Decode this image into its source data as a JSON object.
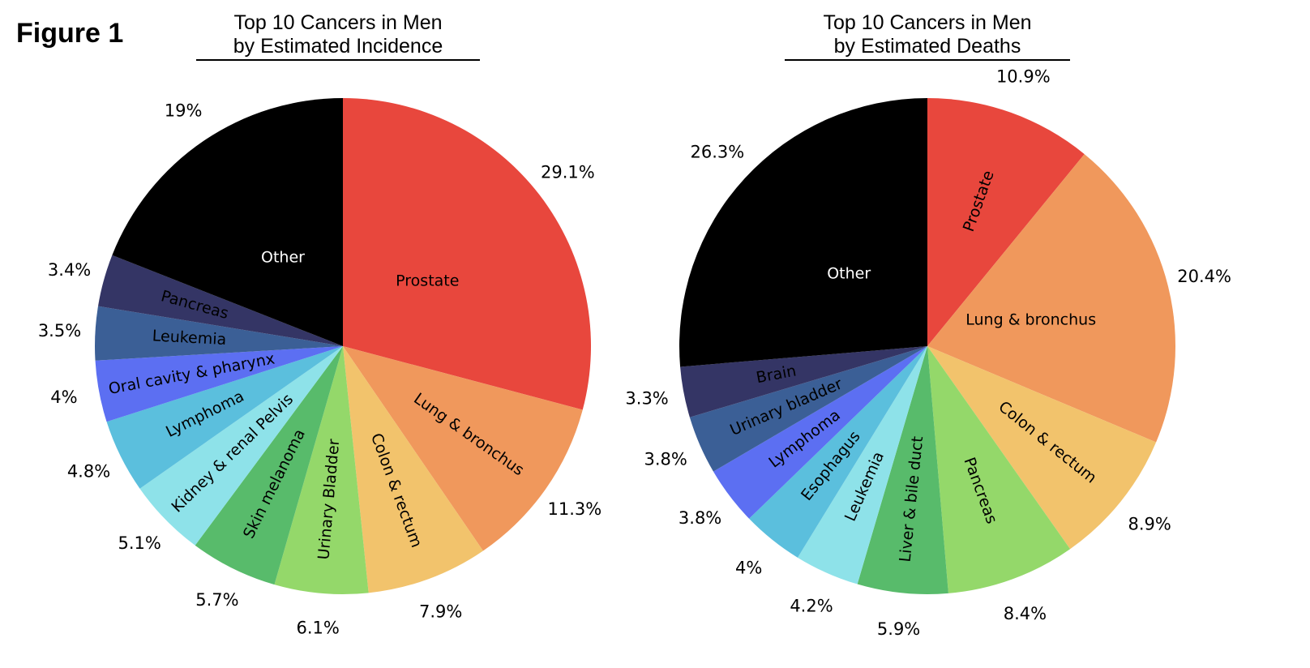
{
  "figure_label": "Figure 1",
  "chart_data": [
    {
      "type": "pie",
      "title_line1": "Top 10 Cancers in Men",
      "title_line2": "by Estimated Incidence",
      "start": "12 o'clock",
      "direction": "clockwise",
      "slices": [
        {
          "label": "Prostate",
          "value": 29.1,
          "pct_label": "29.1%",
          "color": "#e8473d",
          "text_color": "#000000"
        },
        {
          "label": "Lung & bronchus",
          "value": 11.3,
          "pct_label": "11.3%",
          "color": "#f0985c",
          "text_color": "#000000"
        },
        {
          "label": "Colon & rectum",
          "value": 7.9,
          "pct_label": "7.9%",
          "color": "#f2c36c",
          "text_color": "#000000"
        },
        {
          "label": "Urinary Bladder",
          "value": 6.1,
          "pct_label": "6.1%",
          "color": "#94d86a",
          "text_color": "#000000"
        },
        {
          "label": "Skin melanoma",
          "value": 5.7,
          "pct_label": "5.7%",
          "color": "#58bb6b",
          "text_color": "#000000"
        },
        {
          "label": "Kidney & renal Pelvis",
          "value": 5.1,
          "pct_label": "5.1%",
          "color": "#8ee2e9",
          "text_color": "#000000"
        },
        {
          "label": "Lymphoma",
          "value": 4.8,
          "pct_label": "4.8%",
          "color": "#5bbfdd",
          "text_color": "#000000"
        },
        {
          "label": "Oral cavity & pharynx",
          "value": 4.0,
          "pct_label": "4%",
          "color": "#5c6ff2",
          "text_color": "#000000"
        },
        {
          "label": "Leukemia",
          "value": 3.5,
          "pct_label": "3.5%",
          "color": "#3b5f96",
          "text_color": "#000000"
        },
        {
          "label": "Pancreas",
          "value": 3.4,
          "pct_label": "3.4%",
          "color": "#343565",
          "text_color": "#000000"
        },
        {
          "label": "Other",
          "value": 19.0,
          "pct_label": "19%",
          "color": "#000000",
          "text_color": "#ffffff"
        }
      ]
    },
    {
      "type": "pie",
      "title_line1": "Top 10 Cancers in Men",
      "title_line2": "by Estimated Deaths",
      "start": "12 o'clock",
      "direction": "clockwise",
      "slices": [
        {
          "label": "Prostate",
          "value": 10.9,
          "pct_label": "10.9%",
          "color": "#e8473d",
          "text_color": "#000000"
        },
        {
          "label": "Lung & bronchus",
          "value": 20.4,
          "pct_label": "20.4%",
          "color": "#f0985c",
          "text_color": "#000000"
        },
        {
          "label": "Colon & rectum",
          "value": 8.9,
          "pct_label": "8.9%",
          "color": "#f2c36c",
          "text_color": "#000000"
        },
        {
          "label": "Pancreas",
          "value": 8.4,
          "pct_label": "8.4%",
          "color": "#94d86a",
          "text_color": "#000000"
        },
        {
          "label": "Liver & bile duct",
          "value": 5.9,
          "pct_label": "5.9%",
          "color": "#58bb6b",
          "text_color": "#000000"
        },
        {
          "label": "Leukemia",
          "value": 4.2,
          "pct_label": "4.2%",
          "color": "#8ee2e9",
          "text_color": "#000000"
        },
        {
          "label": "Esophagus",
          "value": 4.0,
          "pct_label": "4%",
          "color": "#5bbfdd",
          "text_color": "#000000"
        },
        {
          "label": "Lymphoma",
          "value": 3.8,
          "pct_label": "3.8%",
          "color": "#5c6ff2",
          "text_color": "#000000"
        },
        {
          "label": "Urinary bladder",
          "value": 3.8,
          "pct_label": "3.8%",
          "color": "#3b5f96",
          "text_color": "#000000"
        },
        {
          "label": "Brain",
          "value": 3.3,
          "pct_label": "3.3%",
          "color": "#343565",
          "text_color": "#000000"
        },
        {
          "label": "Other",
          "value": 26.3,
          "pct_label": "26.3%",
          "color": "#000000",
          "text_color": "#ffffff"
        }
      ]
    }
  ]
}
